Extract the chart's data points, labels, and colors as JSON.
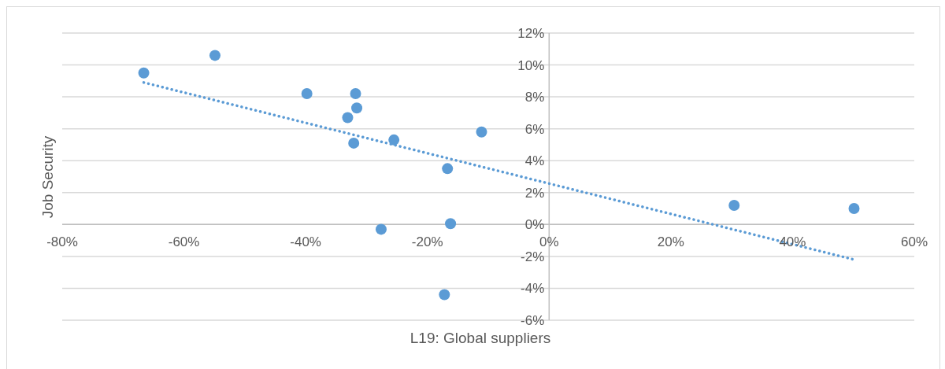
{
  "chart_data": {
    "type": "scatter",
    "xlabel": "L19: Global suppliers",
    "ylabel": "Job Security",
    "x": [
      -66.6,
      -54.9,
      -39.8,
      -31.8,
      -31.6,
      -33.1,
      -32.1,
      -25.5,
      -11.1,
      -16.7,
      -27.6,
      -16.2,
      -17.2,
      30.4,
      50.1
    ],
    "series": [
      {
        "color": "#5b9bd5",
        "marker": "circle",
        "values": [
          9.5,
          10.6,
          8.2,
          8.2,
          7.3,
          6.7,
          5.1,
          5.3,
          5.8,
          3.5,
          -0.3,
          0.05,
          -4.4,
          1.2,
          1.0
        ]
      },
      {
        "type": "line",
        "color": "#5b9bd5",
        "line_style": "dotted",
        "marker": "none",
        "x": [
          -66.6,
          50.1
        ],
        "values": [
          8.9,
          -2.2
        ]
      }
    ],
    "xlim": [
      -80,
      60
    ],
    "xticks": [
      {
        "value": -80,
        "label": "-80%"
      },
      {
        "value": -60,
        "label": "-60%"
      },
      {
        "value": -40,
        "label": "-40%"
      },
      {
        "value": -20,
        "label": "-20%"
      },
      {
        "value": 0,
        "label": "0%"
      },
      {
        "value": 20,
        "label": "20%"
      },
      {
        "value": 40,
        "label": "40%"
      },
      {
        "value": 60,
        "label": "60%"
      }
    ],
    "ylim": [
      -6,
      12
    ],
    "yticks": [
      {
        "value": -6,
        "label": "-6%"
      },
      {
        "value": -4,
        "label": "-4%"
      },
      {
        "value": -2,
        "label": "-2%"
      },
      {
        "value": 0,
        "label": "0%"
      },
      {
        "value": 2,
        "label": "2%"
      },
      {
        "value": 4,
        "label": "4%"
      },
      {
        "value": 6,
        "label": "6%"
      },
      {
        "value": 8,
        "label": "8%"
      },
      {
        "value": 10,
        "label": "10%"
      },
      {
        "value": 12,
        "label": "12%"
      }
    ],
    "grid": "y"
  }
}
